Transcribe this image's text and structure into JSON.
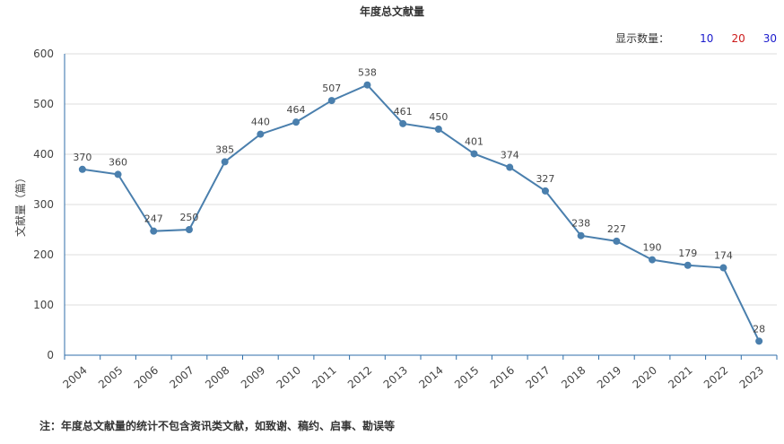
{
  "header": {
    "count_label": "显示数量：",
    "count_options": [
      {
        "label": "10",
        "color": "#1a1acc"
      },
      {
        "label": "20",
        "color": "#cc1a1a"
      },
      {
        "label": "30",
        "color": "#1a1acc"
      }
    ]
  },
  "note": "注：年度总文献量的统计不包含资讯类文献，如致谢、稿约、启事、勘误等",
  "chart_data": {
    "type": "line",
    "title": "年度总文献量",
    "xlabel": "",
    "ylabel": "文献量（篇）",
    "ylim": [
      0,
      600
    ],
    "yticks": [
      0,
      100,
      200,
      300,
      400,
      500,
      600
    ],
    "categories": [
      "2004",
      "2005",
      "2006",
      "2007",
      "2008",
      "2009",
      "2010",
      "2011",
      "2012",
      "2013",
      "2014",
      "2015",
      "2016",
      "2017",
      "2018",
      "2019",
      "2020",
      "2021",
      "2022",
      "2023"
    ],
    "values": [
      370,
      360,
      247,
      250,
      385,
      440,
      464,
      507,
      538,
      461,
      450,
      401,
      374,
      327,
      238,
      227,
      190,
      179,
      174,
      28
    ],
    "grid": true,
    "line_color": "#4a7fad"
  }
}
